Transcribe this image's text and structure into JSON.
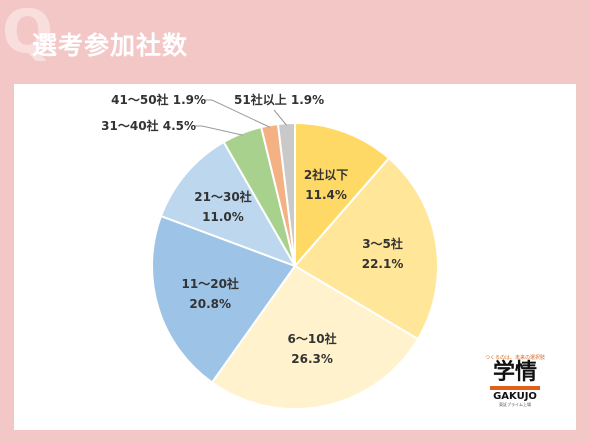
{
  "header": {
    "q_mark": "Q",
    "title": "選考参加社数"
  },
  "logo": {
    "tagline": "つくるのは、未来の選択肢",
    "mark": "学情",
    "name_en": "GAKUJO",
    "sub": "東証プライム上場"
  },
  "chart_data": {
    "type": "pie",
    "title": "選考参加社数",
    "start": "12 o'clock, clockwise",
    "slices": [
      {
        "label": "2社以下",
        "value": 11.4,
        "value_label": "11.4%",
        "color": "#ffd966"
      },
      {
        "label": "3～5社",
        "value": 22.1,
        "value_label": "22.1%",
        "color": "#ffe699"
      },
      {
        "label": "6～10社",
        "value": 26.3,
        "value_label": "26.3%",
        "color": "#fff2cc"
      },
      {
        "label": "11～20社",
        "value": 20.8,
        "value_label": "20.8%",
        "color": "#9dc3e6"
      },
      {
        "label": "21～30社",
        "value": 11.0,
        "value_label": "11.0%",
        "color": "#bdd7ee"
      },
      {
        "label": "31～40社",
        "value": 4.5,
        "value_label": "4.5%",
        "color": "#a9d18e"
      },
      {
        "label": "41～50社",
        "value": 1.9,
        "value_label": "1.9%",
        "color": "#f4b183"
      },
      {
        "label": "51社以上",
        "value": 1.9,
        "value_label": "1.9%",
        "color": "#c9c9c9"
      }
    ]
  }
}
